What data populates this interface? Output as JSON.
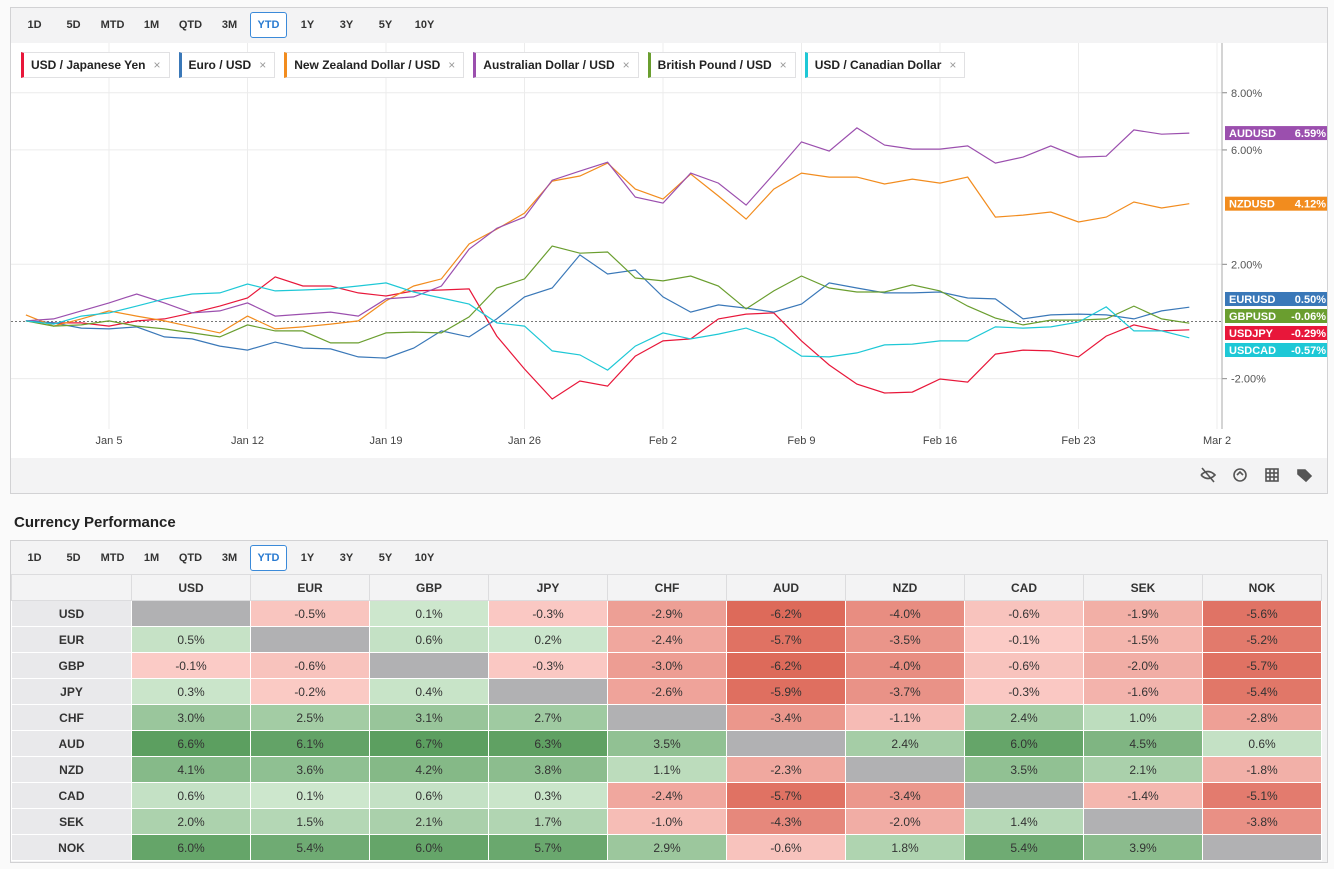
{
  "periods": [
    "1D",
    "5D",
    "MTD",
    "1M",
    "QTD",
    "3M",
    "YTD",
    "1Y",
    "3Y",
    "5Y",
    "10Y"
  ],
  "selected_period": "YTD",
  "chart_data": {
    "type": "line",
    "categories": [
      null,
      null,
      null,
      "Jan 5",
      null,
      null,
      null,
      null,
      "Jan 12",
      null,
      null,
      null,
      null,
      "Jan 19",
      null,
      null,
      null,
      null,
      "Jan 26",
      null,
      null,
      null,
      null,
      "Feb 2",
      null,
      null,
      null,
      null,
      "Feb 9",
      null,
      null,
      null,
      null,
      "Feb 16",
      null,
      null,
      null,
      null,
      "Feb 23",
      null,
      null,
      null,
      null,
      "Mar 2"
    ],
    "series": [
      {
        "name": "USD / Japanese Yen",
        "ticker": "USDJPY",
        "last_label": "-0.29%",
        "color": "#e8173a",
        "values": [
          0.02,
          -0.05,
          -0.05,
          -0.16,
          0.02,
          0.09,
          0.3,
          0.54,
          0.82,
          1.56,
          1.24,
          1.24,
          1.0,
          0.89,
          1.07,
          1.1,
          1.14,
          -0.51,
          -1.66,
          -2.71,
          -2.08,
          -2.26,
          -1.21,
          -0.68,
          -0.61,
          0.09,
          0.26,
          0.3,
          -0.68,
          -1.52,
          -2.19,
          -2.5,
          -2.47,
          -2.01,
          -2.12,
          -1.14,
          -1.0,
          -1.03,
          -1.24,
          -0.51,
          -0.12,
          -0.33,
          -0.29,
          null
        ]
      },
      {
        "name": "Euro / USD",
        "ticker": "EURUSD",
        "last_label": "0.50%",
        "color": "#3a78b8",
        "values": [
          0.02,
          -0.05,
          -0.23,
          -0.26,
          -0.19,
          -0.54,
          -0.61,
          -0.86,
          -1.0,
          -0.72,
          -0.93,
          -0.96,
          -1.24,
          -1.28,
          -0.93,
          -0.33,
          -0.54,
          0.09,
          0.86,
          1.17,
          2.33,
          1.66,
          1.8,
          0.86,
          0.33,
          0.58,
          0.47,
          0.33,
          0.61,
          1.35,
          1.17,
          1.0,
          1.0,
          1.03,
          0.82,
          0.79,
          0.09,
          0.23,
          0.26,
          0.23,
          0.09,
          0.37,
          0.5,
          null
        ]
      },
      {
        "name": "New Zealand Dollar / USD",
        "ticker": "NZDUSD",
        "last_label": "4.12%",
        "color": "#f28c1e",
        "values": [
          0.23,
          -0.16,
          0.09,
          0.37,
          0.19,
          0.02,
          -0.19,
          -0.4,
          0.19,
          -0.26,
          -0.19,
          -0.09,
          0.02,
          0.72,
          1.24,
          1.49,
          2.71,
          3.23,
          3.79,
          4.91,
          5.09,
          5.54,
          4.63,
          4.28,
          5.16,
          4.39,
          3.58,
          4.63,
          5.19,
          5.05,
          5.05,
          4.81,
          4.98,
          4.84,
          5.05,
          3.65,
          3.72,
          3.83,
          3.48,
          3.65,
          4.18,
          3.97,
          4.12,
          null
        ]
      },
      {
        "name": "Australian Dollar / USD",
        "ticker": "AUDUSD",
        "last_label": "6.59%",
        "color": "#9b4fae",
        "values": [
          0.02,
          0.09,
          0.37,
          0.65,
          0.96,
          0.65,
          0.3,
          0.37,
          0.65,
          0.19,
          0.26,
          0.33,
          0.19,
          0.79,
          0.86,
          1.24,
          2.53,
          3.26,
          3.65,
          4.94,
          5.26,
          5.57,
          4.35,
          4.14,
          5.19,
          4.84,
          4.07,
          5.16,
          6.28,
          5.96,
          6.77,
          6.17,
          6.03,
          6.03,
          6.14,
          5.54,
          5.75,
          6.14,
          5.75,
          5.78,
          6.7,
          6.55,
          6.59,
          null
        ]
      },
      {
        "name": "British Pound / USD",
        "ticker": "GBPUSD",
        "last_label": "-0.06%",
        "color": "#6a9e2f",
        "values": [
          0.02,
          -0.16,
          -0.12,
          0.02,
          -0.16,
          -0.26,
          -0.4,
          -0.54,
          -0.12,
          -0.33,
          -0.33,
          -0.75,
          -0.75,
          -0.4,
          -0.37,
          -0.4,
          0.16,
          1.17,
          1.49,
          2.64,
          2.39,
          2.43,
          1.52,
          1.42,
          1.59,
          1.24,
          0.44,
          1.07,
          1.59,
          1.17,
          1.03,
          1.03,
          1.28,
          1.07,
          0.54,
          0.12,
          -0.12,
          0.05,
          0.05,
          0.09,
          0.54,
          0.09,
          -0.06,
          null
        ]
      },
      {
        "name": "USD / Canadian Dollar",
        "ticker": "USDCAD",
        "last_label": "-0.57%",
        "color": "#1ec8d6",
        "values": [
          0.02,
          -0.09,
          0.19,
          0.3,
          0.54,
          0.79,
          0.96,
          1.0,
          1.31,
          1.07,
          1.1,
          1.14,
          1.24,
          1.35,
          1.03,
          0.82,
          0.61,
          -0.05,
          -0.16,
          -1.03,
          -1.17,
          -1.7,
          -0.86,
          -0.4,
          -0.61,
          -0.44,
          -0.23,
          -0.58,
          -1.21,
          -1.24,
          -1.1,
          -0.82,
          -0.79,
          -0.68,
          -0.68,
          -0.19,
          -0.23,
          -0.19,
          -0.02,
          0.51,
          -0.33,
          -0.33,
          -0.57,
          null
        ]
      }
    ],
    "ylim": [
      -3.76,
      9.74
    ],
    "yticks": [
      {
        "value": -2,
        "label": "-2.00%"
      },
      {
        "value": 2,
        "label": "2.00%"
      },
      {
        "value": 6,
        "label": "6.00%"
      },
      {
        "value": 8,
        "label": "8.00%"
      }
    ],
    "grid": true
  },
  "table": {
    "title": "Currency Performance",
    "columns": [
      "USD",
      "EUR",
      "GBP",
      "JPY",
      "CHF",
      "AUD",
      "NZD",
      "CAD",
      "SEK",
      "NOK"
    ],
    "rows": [
      {
        "label": "USD",
        "cells": [
          null,
          "-0.5%",
          "0.1%",
          "-0.3%",
          "-2.9%",
          "-6.2%",
          "-4.0%",
          "-0.6%",
          "-1.9%",
          "-5.6%"
        ]
      },
      {
        "label": "EUR",
        "cells": [
          "0.5%",
          null,
          "0.6%",
          "0.2%",
          "-2.4%",
          "-5.7%",
          "-3.5%",
          "-0.1%",
          "-1.5%",
          "-5.2%"
        ]
      },
      {
        "label": "GBP",
        "cells": [
          "-0.1%",
          "-0.6%",
          null,
          "-0.3%",
          "-3.0%",
          "-6.2%",
          "-4.0%",
          "-0.6%",
          "-2.0%",
          "-5.7%"
        ]
      },
      {
        "label": "JPY",
        "cells": [
          "0.3%",
          "-0.2%",
          "0.4%",
          null,
          "-2.6%",
          "-5.9%",
          "-3.7%",
          "-0.3%",
          "-1.6%",
          "-5.4%"
        ]
      },
      {
        "label": "CHF",
        "cells": [
          "3.0%",
          "2.5%",
          "3.1%",
          "2.7%",
          null,
          "-3.4%",
          "-1.1%",
          "2.4%",
          "1.0%",
          "-2.8%"
        ]
      },
      {
        "label": "AUD",
        "cells": [
          "6.6%",
          "6.1%",
          "6.7%",
          "6.3%",
          "3.5%",
          null,
          "2.4%",
          "6.0%",
          "4.5%",
          "0.6%"
        ]
      },
      {
        "label": "NZD",
        "cells": [
          "4.1%",
          "3.6%",
          "4.2%",
          "3.8%",
          "1.1%",
          "-2.3%",
          null,
          "3.5%",
          "2.1%",
          "-1.8%"
        ]
      },
      {
        "label": "CAD",
        "cells": [
          "0.6%",
          "0.1%",
          "0.6%",
          "0.3%",
          "-2.4%",
          "-5.7%",
          "-3.4%",
          null,
          "-1.4%",
          "-5.1%"
        ]
      },
      {
        "label": "SEK",
        "cells": [
          "2.0%",
          "1.5%",
          "2.1%",
          "1.7%",
          "-1.0%",
          "-4.3%",
          "-2.0%",
          "1.4%",
          null,
          "-3.8%"
        ]
      },
      {
        "label": "NOK",
        "cells": [
          "6.0%",
          "5.4%",
          "6.0%",
          "5.7%",
          "2.9%",
          "-0.6%",
          "1.8%",
          "5.4%",
          "3.9%",
          null
        ]
      }
    ]
  }
}
